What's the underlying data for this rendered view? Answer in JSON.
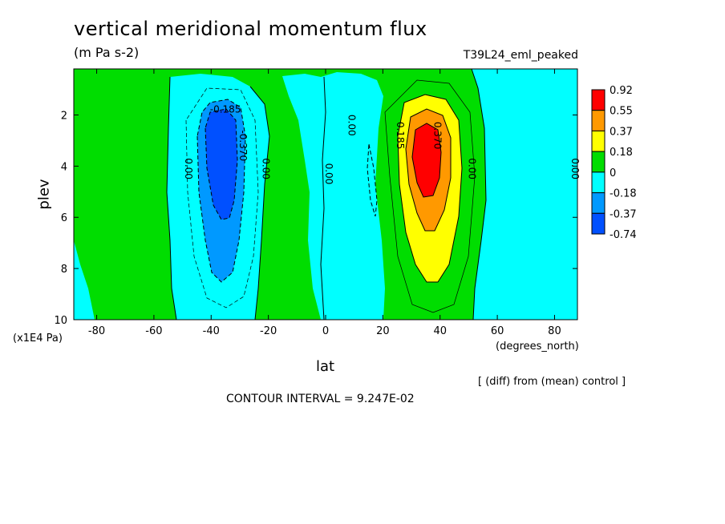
{
  "chart_data": {
    "type": "heatmap",
    "title": "vertical meridional momentum flux",
    "units": "(m Pa s-2)",
    "run_label": "T39L24_eml_peaked",
    "xlabel": "lat",
    "x_units": "(degrees_north)",
    "ylabel": "plev",
    "y_units": "(x1E4 Pa)",
    "xlim": [
      -88,
      88
    ],
    "ylim": [
      10,
      0.2
    ],
    "x_ticks": [
      -80,
      -60,
      -40,
      -20,
      0,
      20,
      40,
      60,
      80
    ],
    "y_ticks": [
      2,
      4,
      6,
      8,
      10
    ],
    "colorbar": {
      "levels": [
        "0.92",
        "0.55",
        "0.37",
        "0.18",
        "0",
        "-0.18",
        "-0.37",
        "-0.74"
      ],
      "colors": [
        "#ff0000",
        "#ff9900",
        "#ffff00",
        "#00dd00",
        "#00ffff",
        "#0099ff",
        "#0050ff"
      ]
    },
    "contour_labels": [
      {
        "text": "-0.185",
        "lat": -35,
        "plev": 1.9
      },
      {
        "text": "-0.370",
        "lat": -30,
        "plev": 3.2
      },
      {
        "text": "0.00",
        "lat": -49,
        "plev": 4.1
      },
      {
        "text": "0.00",
        "lat": -22,
        "plev": 4.1
      },
      {
        "text": "0.00",
        "lat": 0,
        "plev": 4.3
      },
      {
        "text": "0.00",
        "lat": 8,
        "plev": 2.4
      },
      {
        "text": "0.185",
        "lat": 25,
        "plev": 2.8
      },
      {
        "text": "0.370",
        "lat": 38,
        "plev": 2.8
      },
      {
        "text": "0.00",
        "lat": 50,
        "plev": 4.1
      },
      {
        "text": "0.00",
        "lat": 86,
        "plev": 4.1
      }
    ],
    "diff_note": "[ (diff) from (mean) control ]",
    "contour_interval": "CONTOUR INTERVAL = 9.247E-02"
  }
}
